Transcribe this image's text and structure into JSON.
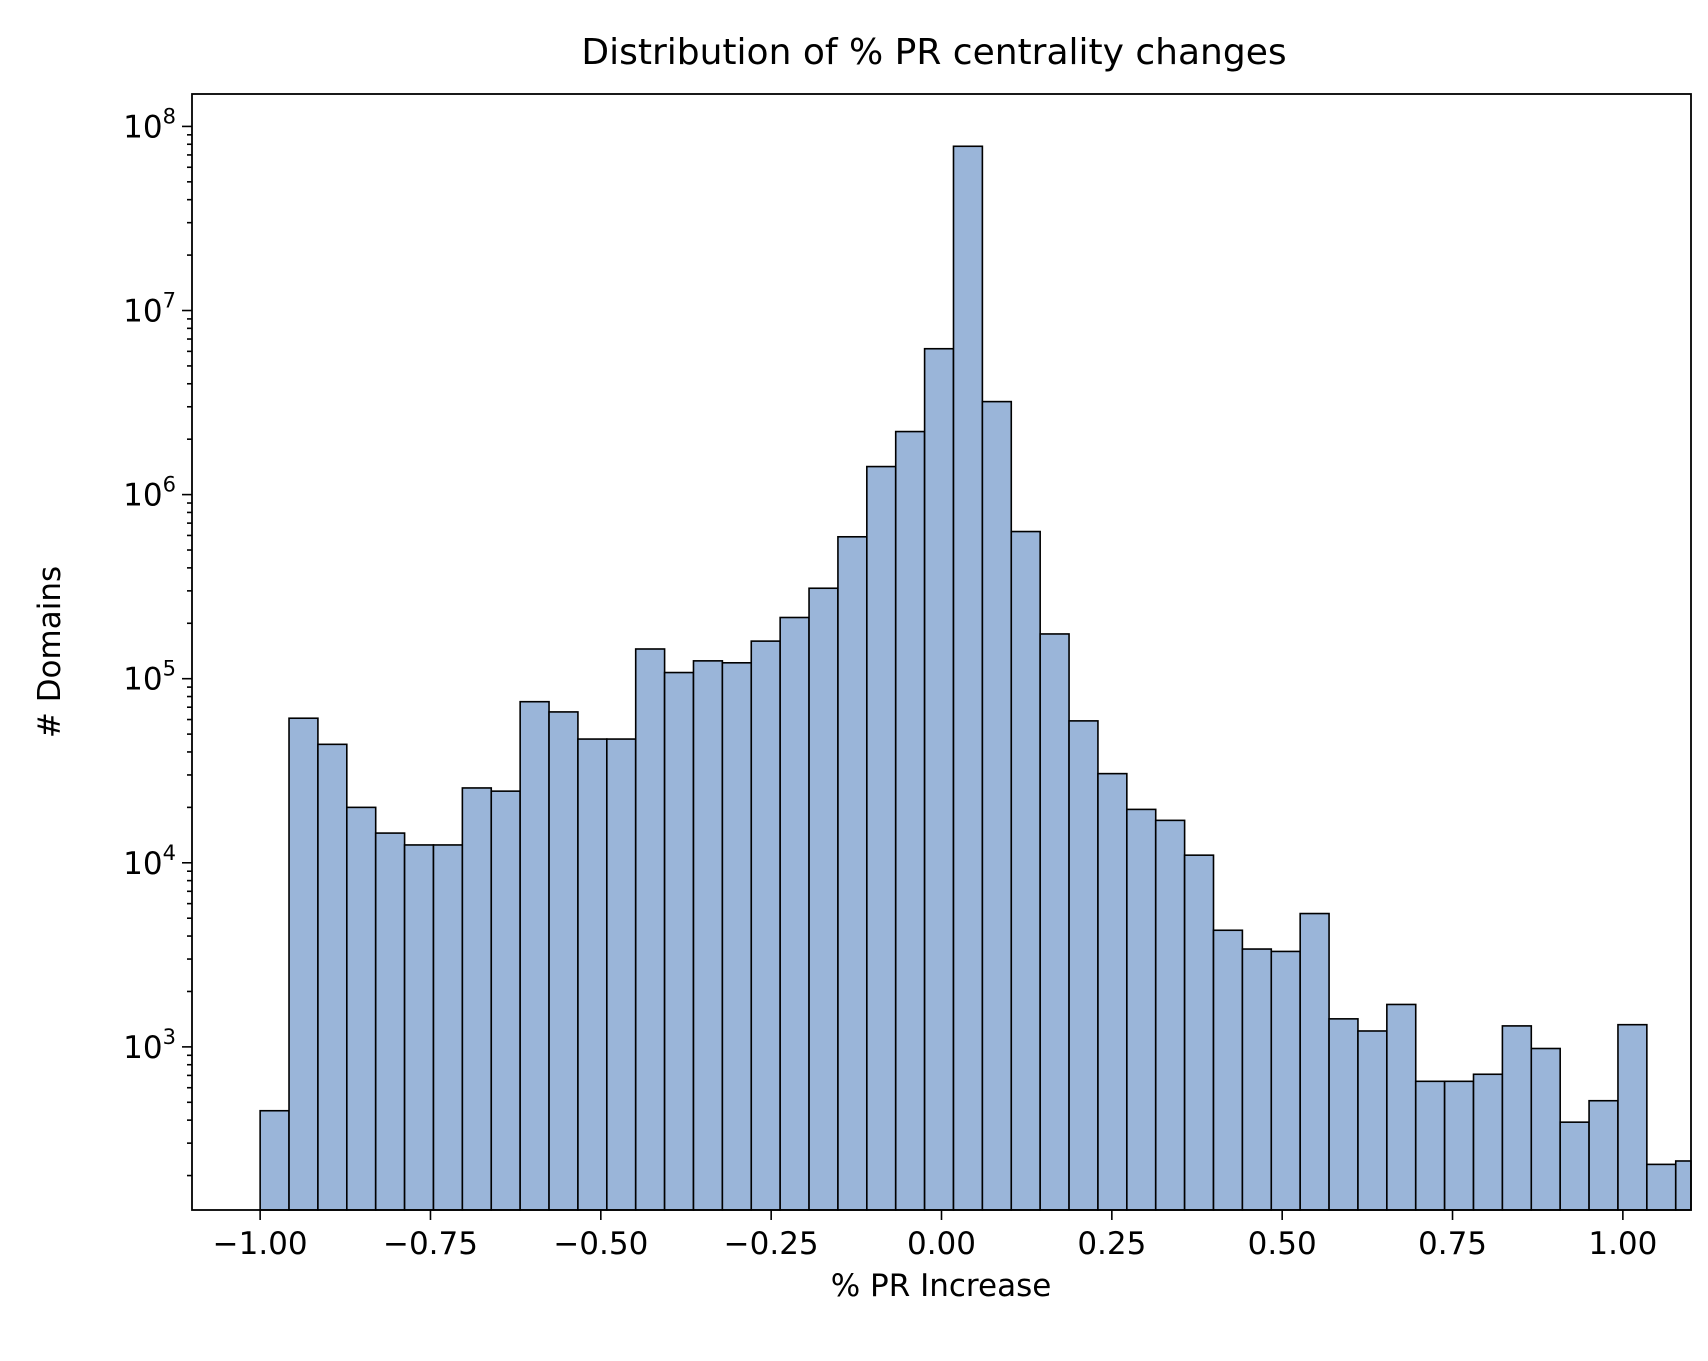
{
  "chart_data": {
    "type": "bar",
    "title": "Distribution of % PR centrality changes",
    "xlabel": "% PR Increase",
    "ylabel": "# Domains",
    "yscale": "log",
    "xlim": [
      -1.1,
      1.1
    ],
    "ylim": [
      130,
      150000000
    ],
    "bar_color": "#9ab5d9",
    "edge_color": "#000000",
    "grid": false,
    "legend": "none",
    "x_ticks": [
      -1.0,
      -0.75,
      -0.5,
      -0.25,
      0.0,
      0.25,
      0.5,
      0.75,
      1.0
    ],
    "x_tick_labels": [
      "−1.00",
      "−0.75",
      "−0.50",
      "−0.25",
      "0.00",
      "0.25",
      "0.50",
      "0.75",
      "1.00"
    ],
    "y_ticks": [
      {
        "value": 1000,
        "base": "10",
        "exp": "3"
      },
      {
        "value": 10000,
        "base": "10",
        "exp": "4"
      },
      {
        "value": 100000,
        "base": "10",
        "exp": "5"
      },
      {
        "value": 1000000,
        "base": "10",
        "exp": "6"
      },
      {
        "value": 10000000,
        "base": "10",
        "exp": "7"
      },
      {
        "value": 100000000,
        "base": "10",
        "exp": "8"
      }
    ],
    "bin_edges": [
      -1.0,
      -0.9576,
      -0.9152,
      -0.8728,
      -0.8304,
      -0.788,
      -0.7456,
      -0.7032,
      -0.6608,
      -0.6184,
      -0.576,
      -0.5336,
      -0.4912,
      -0.4488,
      -0.4064,
      -0.364,
      -0.3216,
      -0.2792,
      -0.2368,
      -0.1944,
      -0.152,
      -0.1096,
      -0.0672,
      -0.0248,
      0.0176,
      0.06,
      0.1024,
      0.1448,
      0.1872,
      0.2296,
      0.272,
      0.3144,
      0.3568,
      0.3992,
      0.4416,
      0.484,
      0.5264,
      0.5688,
      0.6112,
      0.6536,
      0.696,
      0.7384,
      0.7808,
      0.8232,
      0.8656,
      0.908,
      0.9504,
      0.9928,
      1.0352,
      1.0776,
      1.12
    ],
    "counts": [
      450,
      61000,
      44000,
      20000,
      14500,
      12500,
      12500,
      25500,
      24500,
      75000,
      66000,
      47000,
      47000,
      145000,
      108000,
      125000,
      122000,
      160000,
      215000,
      310000,
      590000,
      1420000,
      2200000,
      6200000,
      78000000,
      3200000,
      630000,
      175000,
      59000,
      30500,
      19500,
      17000,
      11000,
      4300,
      3400,
      3300,
      5300,
      1420,
      1220,
      1700,
      650,
      650,
      710,
      1300,
      980,
      390,
      510,
      1320,
      230,
      240
    ]
  }
}
